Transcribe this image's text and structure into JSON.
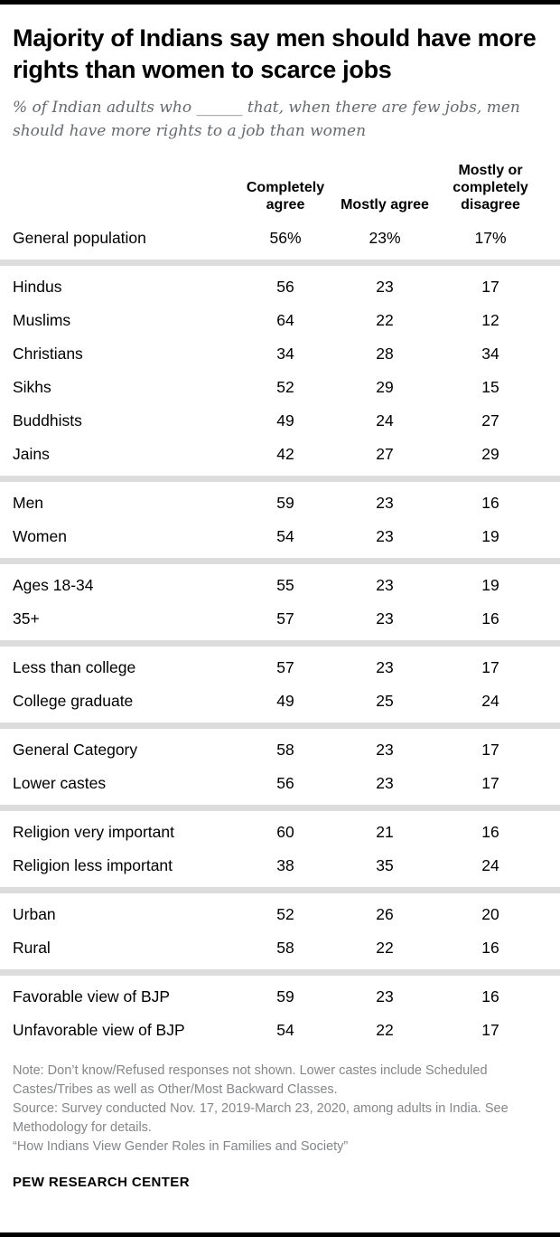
{
  "header": {
    "title": "Majority of Indians say men should have more rights than women to scarce jobs",
    "subtitle": "% of Indian adults who ______ that, when there are few jobs, men should have more rights to a job than women"
  },
  "chart_data": {
    "type": "table",
    "title": "Majority of Indians say men should have more rights than women to scarce jobs",
    "subtitle": "% of Indian adults who ______ that, when there are few jobs, men should have more rights to a job than women",
    "columns": [
      "Completely agree",
      "Mostly agree",
      "Mostly or completely disagree"
    ],
    "groups": [
      {
        "rows": [
          {
            "label": "General population",
            "values": [
              "56%",
              "23%",
              "17%"
            ]
          }
        ]
      },
      {
        "rows": [
          {
            "label": "Hindus",
            "values": [
              "56",
              "23",
              "17"
            ]
          },
          {
            "label": "Muslims",
            "values": [
              "64",
              "22",
              "12"
            ]
          },
          {
            "label": "Christians",
            "values": [
              "34",
              "28",
              "34"
            ]
          },
          {
            "label": "Sikhs",
            "values": [
              "52",
              "29",
              "15"
            ]
          },
          {
            "label": "Buddhists",
            "values": [
              "49",
              "24",
              "27"
            ]
          },
          {
            "label": "Jains",
            "values": [
              "42",
              "27",
              "29"
            ]
          }
        ]
      },
      {
        "rows": [
          {
            "label": "Men",
            "values": [
              "59",
              "23",
              "16"
            ]
          },
          {
            "label": "Women",
            "values": [
              "54",
              "23",
              "19"
            ]
          }
        ]
      },
      {
        "rows": [
          {
            "label": "Ages 18-34",
            "values": [
              "55",
              "23",
              "19"
            ]
          },
          {
            "label": "35+",
            "values": [
              "57",
              "23",
              "16"
            ]
          }
        ]
      },
      {
        "rows": [
          {
            "label": "Less than college",
            "values": [
              "57",
              "23",
              "17"
            ]
          },
          {
            "label": "College graduate",
            "values": [
              "49",
              "25",
              "24"
            ]
          }
        ]
      },
      {
        "rows": [
          {
            "label": "General Category",
            "values": [
              "58",
              "23",
              "17"
            ]
          },
          {
            "label": "Lower castes",
            "values": [
              "56",
              "23",
              "17"
            ]
          }
        ]
      },
      {
        "rows": [
          {
            "label": "Religion very important",
            "values": [
              "60",
              "21",
              "16"
            ]
          },
          {
            "label": "Religion less important",
            "values": [
              "38",
              "35",
              "24"
            ]
          }
        ]
      },
      {
        "rows": [
          {
            "label": "Urban",
            "values": [
              "52",
              "26",
              "20"
            ]
          },
          {
            "label": "Rural",
            "values": [
              "58",
              "22",
              "16"
            ]
          }
        ]
      },
      {
        "rows": [
          {
            "label": "Favorable view of BJP",
            "values": [
              "59",
              "23",
              "16"
            ]
          },
          {
            "label": "Unfavorable view of BJP",
            "values": [
              "54",
              "22",
              "17"
            ]
          }
        ]
      }
    ]
  },
  "footer": {
    "note": "Note: Don’t know/Refused responses not shown. Lower castes include Scheduled Castes/Tribes as well as Other/Most Backward Classes.",
    "source": "Source: Survey conducted Nov. 17, 2019-March 23, 2020, among adults in India. See Methodology for details.",
    "report": "“How Indians View Gender Roles in Families and Society”",
    "brand": "PEW RESEARCH CENTER"
  }
}
